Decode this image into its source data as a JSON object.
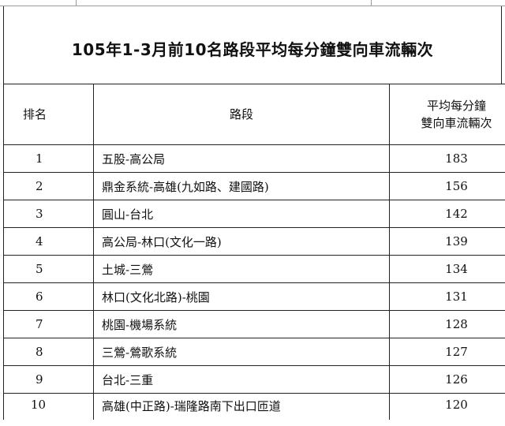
{
  "title": "105年1-3月前10名路段平均每分鐘雙向車流輛次",
  "headers": {
    "rank": "排名",
    "road": "路段",
    "value_line1": "平均每分鐘",
    "value_line2": "雙向車流輛次"
  },
  "rows": [
    {
      "rank": "1",
      "road": "五股-高公局",
      "value": "183"
    },
    {
      "rank": "2",
      "road": "鼎金系統-高雄(九如路、建國路)",
      "value": "156"
    },
    {
      "rank": "3",
      "road": "圓山-台北",
      "value": "142"
    },
    {
      "rank": "4",
      "road": "高公局-林口(文化一路)",
      "value": "139"
    },
    {
      "rank": "5",
      "road": "土城-三鶯",
      "value": "134"
    },
    {
      "rank": "6",
      "road": "林口(文化北路)-桃園",
      "value": "131"
    },
    {
      "rank": "7",
      "road": "桃園-機場系統",
      "value": "128"
    },
    {
      "rank": "8",
      "road": "三鶯-鶯歌系統",
      "value": "127"
    },
    {
      "rank": "9",
      "road": "台北-三重",
      "value": "126"
    },
    {
      "rank": "10",
      "road": "高雄(中正路)-瑞隆路南下出口匝道",
      "value": "120"
    }
  ]
}
